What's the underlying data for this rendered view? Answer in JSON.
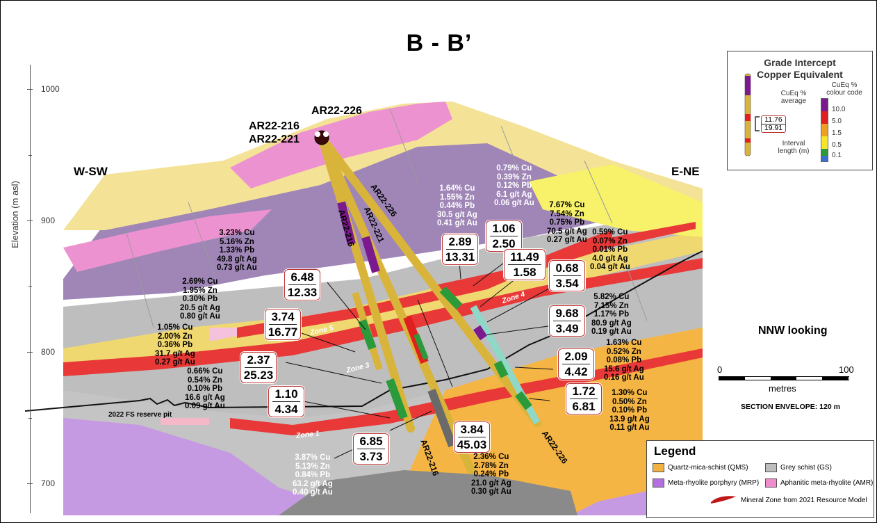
{
  "title": "B - B’",
  "directions": {
    "left": "W-SW",
    "right": "E-NE"
  },
  "view": "NNW looking",
  "axis": {
    "label": "Elevation (m asl)",
    "ticks": [
      "1000",
      "900",
      "800",
      "700"
    ]
  },
  "collar_labels": [
    "AR22-226",
    "AR22-216",
    "AR22-221"
  ],
  "hole_labels": [
    "AR22-216",
    "AR22-221",
    "AR22-226",
    "AR22-216",
    "AR22-226"
  ],
  "zones": [
    "Zone 5",
    "Zone 4",
    "Zone 3",
    "Zone 1"
  ],
  "reserve_pit": "2022 FS reserve pit",
  "intercepts": [
    {
      "avg": "6.48",
      "len": "12.33",
      "grade": [
        "3.23% Cu",
        "5.16% Zn",
        "1.33% Pb",
        "49.8 g/t Ag",
        "0.73 g/t Au"
      ]
    },
    {
      "avg": "3.74",
      "len": "16.77",
      "grade": [
        "2.69% Cu",
        "1.95% Zn",
        "0.30% Pb",
        "20.5 g/t Ag",
        "0.80 g/t Au"
      ]
    },
    {
      "avg": "2.37",
      "len": "25.23",
      "grade": [
        "1.05% Cu",
        "2.00% Zn",
        "0.36% Pb",
        "31.7 g/t Ag",
        "0.27 g/t Au"
      ]
    },
    {
      "avg": "1.10",
      "len": "4.34",
      "grade": [
        "0.66% Cu",
        "0.54% Zn",
        "0.10% Pb",
        "16.6 g/t Ag",
        "0.09 g/t Au"
      ]
    },
    {
      "avg": "6.85",
      "len": "3.73",
      "grade": [
        "3.87% Cu",
        "5.13% Zn",
        "0.84% Pb",
        "63.2 g/t Ag",
        "0.40 g/t Au"
      ]
    },
    {
      "avg": "3.84",
      "len": "45.03",
      "grade": [
        "2.36% Cu",
        "2.78% Zn",
        "0.24% Pb",
        "21.0 g/t Ag",
        "0.30 g/t Au"
      ]
    },
    {
      "avg": "2.89",
      "len": "13.31",
      "grade": [
        "1.64% Cu",
        "1.55% Zn",
        "0.44% Pb",
        "30.5 g/t Ag",
        "0.41 g/t Au"
      ]
    },
    {
      "avg": "1.06",
      "len": "2.50",
      "grade": [
        "0.79% Cu",
        "0.39% Zn",
        "0.12% Pb",
        "6.1 g/t Ag",
        "0.06 g/t Au"
      ]
    },
    {
      "avg": "11.49",
      "len": "1.58",
      "grade": [
        "7.67% Cu",
        "7.54% Zn",
        "0.75% Pb",
        "70.5 g/t Ag",
        "0.27 g/t Au"
      ]
    },
    {
      "avg": "0.68",
      "len": "3.54",
      "grade": [
        "0.59% Cu",
        "0.07% Zn",
        "0.01% Pb",
        "4.0 g/t Ag",
        "0.04 g/t Au"
      ]
    },
    {
      "avg": "9.68",
      "len": "3.49",
      "grade": [
        "5.82% Cu",
        "7.15% Zn",
        "1.17% Pb",
        "80.9 g/t Ag",
        "0.19 g/t Au"
      ]
    },
    {
      "avg": "2.09",
      "len": "4.42",
      "grade": [
        "1.63% Cu",
        "0.52% Zn",
        "0.08% Pb",
        "15.6 g/t Ag",
        "0.16 g/t Au"
      ]
    },
    {
      "avg": "1.72",
      "len": "6.81",
      "grade": [
        "1.30% Cu",
        "0.50% Zn",
        "0.10% Pb",
        "13.9 g/t Ag",
        "0.11 g/t Au"
      ]
    }
  ],
  "grade_legend": {
    "title1": "Grade Intercept",
    "title2": "Copper Equivalent",
    "avg_label1": "CuEq %",
    "avg_label2": "average",
    "code_label1": "CuEq %",
    "code_label2": "colour code",
    "example_avg": "11.76",
    "example_len": "19.91",
    "len_label1": "Interval",
    "len_label2": "length (m)",
    "scale": [
      {
        "value": "10.0",
        "color": "#7b1a8c"
      },
      {
        "value": "5.0",
        "color": "#e0201e"
      },
      {
        "value": "1.5",
        "color": "#f0a020"
      },
      {
        "value": "0.5",
        "color": "#f5e62a"
      },
      {
        "value": "0.1",
        "color": "#2a9a3a"
      }
    ],
    "bottom_color": "#3a6ed0"
  },
  "scale_bar": {
    "min": "0",
    "max": "100",
    "unit": "metres",
    "envelope": "SECTION ENVELOPE: 120 m"
  },
  "legend": {
    "title": "Legend",
    "items": [
      {
        "label": "Quartz-mica-schist (QMS)",
        "color": "#f3b23f"
      },
      {
        "label": "Grey schist (GS)",
        "color": "#bdbdbd"
      },
      {
        "label": "Meta-rhyolite porphyry (MRP)",
        "color": "#b56ee0"
      },
      {
        "label": "Aphanitic meta-rhyolite (AMR)",
        "color": "#ef8ccd"
      },
      {
        "label": "Mineral Zone from 2021 Resource Model",
        "color": "#d02020"
      }
    ]
  }
}
